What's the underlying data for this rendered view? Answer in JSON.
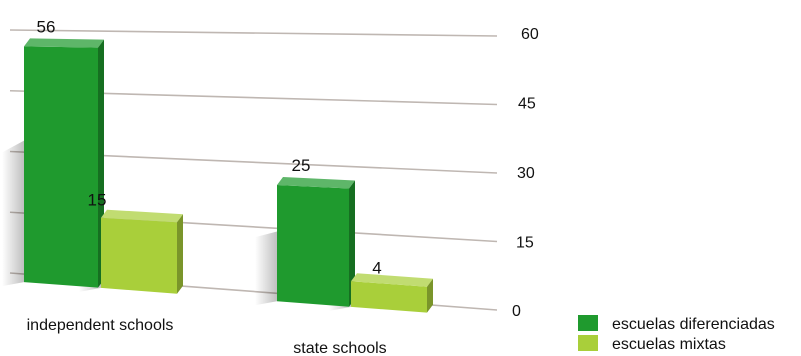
{
  "chart_data": {
    "type": "bar",
    "categories": [
      "independent schools",
      "state schools"
    ],
    "series": [
      {
        "name": "escuelas diferenciadas",
        "values": [
          56,
          25
        ],
        "color": "#1f9a2e"
      },
      {
        "name": "escuelas mixtas",
        "values": [
          15,
          4
        ],
        "color": "#a9cf3a"
      }
    ],
    "ylim": [
      0,
      60
    ],
    "yticks": [
      0,
      15,
      30,
      45,
      60
    ],
    "ytick_labels": [
      "0",
      "15",
      "30",
      "45",
      "60"
    ],
    "data_labels": [
      [
        "56",
        "25"
      ],
      [
        "15",
        "4"
      ]
    ],
    "grid": true,
    "legend_position": "bottom-right",
    "style": "3d-perspective"
  }
}
